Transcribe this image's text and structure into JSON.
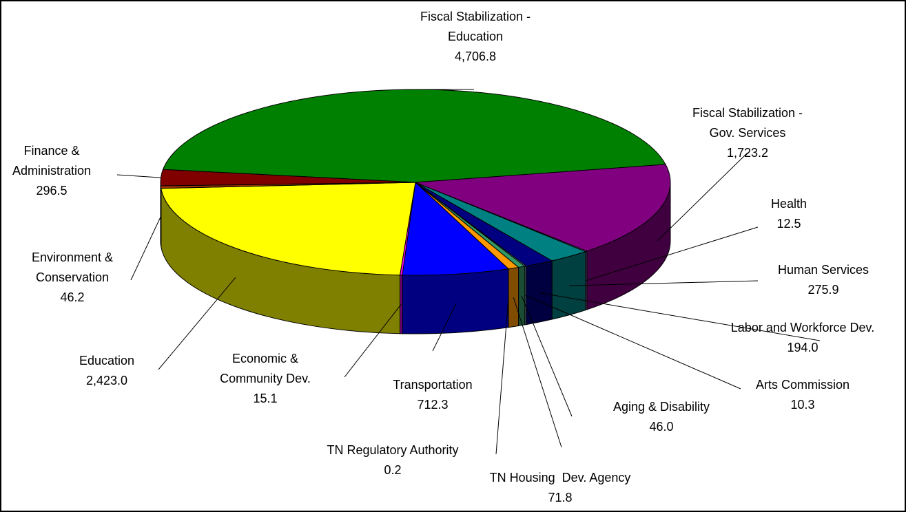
{
  "chart_data": {
    "type": "pie3d",
    "categories": [
      "Fiscal Stabilization - Education",
      "Fiscal Stabilization - Gov. Services",
      "Health",
      "Human Services",
      "Labor and Workforce Dev.",
      "Arts Commission",
      "Aging & Disability",
      "TN Housing  Dev. Agency",
      "TN Regulatory Authority",
      "Transportation",
      "Economic & Community Dev.",
      "Education",
      "Environment & Conservation",
      "Finance & Administration"
    ],
    "values": [
      4706.8,
      1723.2,
      12.5,
      275.9,
      194.0,
      10.3,
      46.0,
      71.8,
      0.2,
      712.3,
      15.1,
      2423.0,
      46.2,
      296.5
    ],
    "value_labels": [
      "4,706.8",
      "1,723.2",
      "12.5",
      "275.9",
      "194.0",
      "10.3",
      "46.0",
      "71.8",
      "0.2",
      "712.3",
      "15.1",
      "2,423.0",
      "46.2",
      "296.5"
    ],
    "colors": [
      "#008000",
      "#800080",
      "#cc99ff",
      "#008080",
      "#000080",
      "#99ccff",
      "#339966",
      "#ff9900",
      "#ffff99",
      "#0000ff",
      "#ff00ff",
      "#ffff00",
      "#993300",
      "#800000"
    ]
  }
}
